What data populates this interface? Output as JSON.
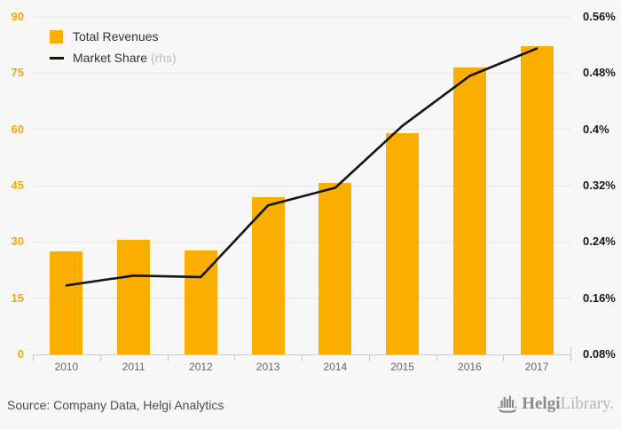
{
  "legend": {
    "total_revenues_label": "Total Revenues",
    "market_share_label": "Market Share ",
    "rhs_suffix": "(rhs)"
  },
  "footer": {
    "source_text": "Source: Company Data, Helgi Analytics",
    "logo_text_bold": "Helgi",
    "logo_text_light": "Library."
  },
  "colors": {
    "bar": "#FAAE00",
    "line": "#141414",
    "left_axis_label": "#F5A800",
    "right_axis_label": "#1a1a1a",
    "axis_line": "#c3cbe0",
    "gridline": "#e7e7e7",
    "background": "#f7f7f7",
    "year_label": "#666666",
    "rhs_text": "#bbbbbb"
  },
  "chart_data": {
    "type": "bar",
    "title": "",
    "categories": [
      "2010",
      "2011",
      "2012",
      "2013",
      "2014",
      "2015",
      "2016",
      "2017"
    ],
    "series": [
      {
        "name": "Total Revenues",
        "type": "bar",
        "axis": "left",
        "values": [
          27.5,
          30.6,
          27.8,
          42.0,
          45.7,
          59.0,
          76.4,
          82.3
        ]
      },
      {
        "name": "Market Share (rhs)",
        "type": "line",
        "axis": "right",
        "values": [
          0.178,
          0.192,
          0.19,
          0.292,
          0.317,
          0.405,
          0.476,
          0.515
        ]
      }
    ],
    "left_axis": {
      "tick_values": [
        0,
        15,
        30,
        45,
        60,
        75,
        90
      ],
      "range": [
        0,
        90
      ]
    },
    "right_axis": {
      "tick_labels": [
        "0.08%",
        "0.16%",
        "0.24%",
        "0.32%",
        "0.4%",
        "0.48%",
        "0.56%"
      ],
      "tick_values": [
        0.08,
        0.16,
        0.24,
        0.32,
        0.4,
        0.48,
        0.56
      ],
      "range": [
        0.08,
        0.56
      ]
    },
    "grid": true,
    "legend_position": "top-left"
  }
}
